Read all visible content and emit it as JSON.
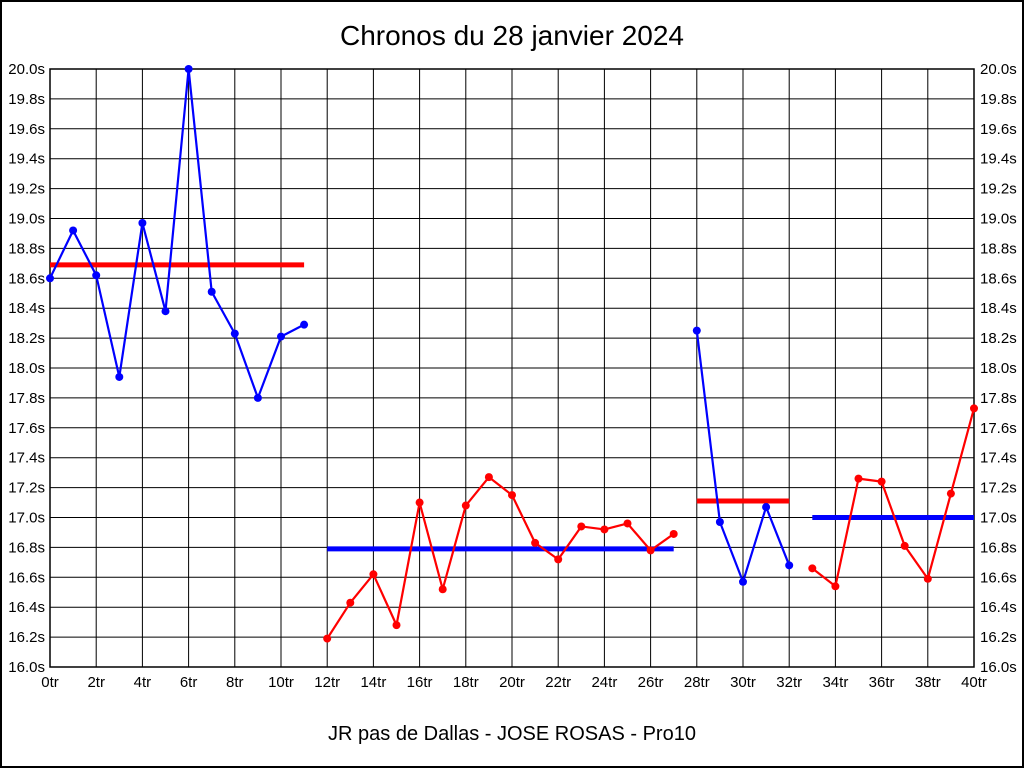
{
  "title": "Chronos du 28 janvier 2024",
  "caption": "JR pas de Dallas - JOSE ROSAS - Pro10",
  "chart_data": {
    "type": "line",
    "title": "Chronos du 28 janvier 2024",
    "subtitle": "JR pas de Dallas - JOSE ROSAS - Pro10",
    "x_unit": "tr",
    "y_unit": "s",
    "xlim": [
      0,
      40
    ],
    "ylim": [
      16.0,
      20.0
    ],
    "x_tick_step": 2,
    "y_tick_step": 0.2,
    "grid": true,
    "legend": "none",
    "x_tick_labels": [
      "0tr",
      "2tr",
      "4tr",
      "6tr",
      "8tr",
      "10tr",
      "12tr",
      "14tr",
      "16tr",
      "18tr",
      "20tr",
      "22tr",
      "24tr",
      "26tr",
      "28tr",
      "30tr",
      "32tr",
      "34tr",
      "36tr",
      "38tr",
      "40tr"
    ],
    "y_tick_labels": [
      "16.0s",
      "16.2s",
      "16.4s",
      "16.6s",
      "16.8s",
      "17.0s",
      "17.2s",
      "17.4s",
      "17.6s",
      "17.8s",
      "18.0s",
      "18.2s",
      "18.4s",
      "18.6s",
      "18.8s",
      "19.0s",
      "19.2s",
      "19.4s",
      "19.6s",
      "19.8s",
      "20.0s"
    ],
    "colors": {
      "blue": "#0000ff",
      "red": "#ff0000"
    },
    "series": [
      {
        "name": "segment-1-blue",
        "color": "blue",
        "x_start": 0,
        "values": [
          18.6,
          18.92,
          18.62,
          17.94,
          18.97,
          18.38,
          20.0,
          18.51,
          18.23,
          17.8,
          18.21,
          18.29
        ]
      },
      {
        "name": "segment-2-red",
        "color": "red",
        "x_start": 12,
        "values": [
          16.19,
          16.43,
          16.62,
          16.28,
          17.1,
          16.52,
          17.08,
          17.27,
          17.15,
          16.83,
          16.72,
          16.94,
          16.92,
          16.96,
          16.78,
          16.89
        ]
      },
      {
        "name": "segment-3-blue",
        "color": "blue",
        "x_start": 28,
        "values": [
          18.25,
          16.97,
          16.57,
          17.07,
          16.68
        ]
      },
      {
        "name": "segment-4-red",
        "color": "red",
        "x_start": 33,
        "values": [
          16.66,
          16.54,
          17.26,
          17.24,
          16.81,
          16.59,
          17.16,
          17.73
        ]
      }
    ],
    "reference_lines": [
      {
        "name": "mean-segment-1",
        "color": "red",
        "x1": 0,
        "x2": 11,
        "y": 18.69
      },
      {
        "name": "mean-segment-2",
        "color": "blue",
        "x1": 12,
        "x2": 27,
        "y": 16.79
      },
      {
        "name": "mean-segment-3",
        "color": "red",
        "x1": 28,
        "x2": 32,
        "y": 17.11
      },
      {
        "name": "mean-segment-4",
        "color": "blue",
        "x1": 33,
        "x2": 40,
        "y": 17.0
      }
    ]
  }
}
